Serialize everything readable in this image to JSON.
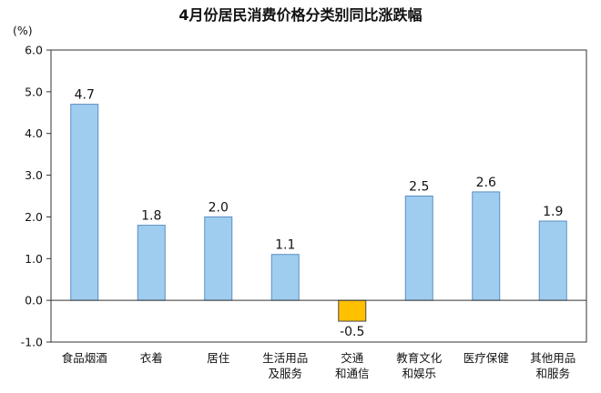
{
  "chart_data": {
    "type": "bar",
    "title": "4月份居民消费价格分类别同比涨跌幅",
    "ylabel": "(%)",
    "ylim": [
      -1.0,
      6.0
    ],
    "yticks": [
      "6.0",
      "5.0",
      "4.0",
      "3.0",
      "2.0",
      "1.0",
      "0.0",
      "-1.0"
    ],
    "ytick_values": [
      6,
      5,
      4,
      3,
      2,
      1,
      0,
      -1
    ],
    "categories": [
      [
        "食品烟酒"
      ],
      [
        "衣着"
      ],
      [
        "居住"
      ],
      [
        "生活用品",
        "及服务"
      ],
      [
        "交通",
        "和通信"
      ],
      [
        "教育文化",
        "和娱乐"
      ],
      [
        "医疗保健"
      ],
      [
        "其他用品",
        "和服务"
      ]
    ],
    "values": [
      4.7,
      1.8,
      2.0,
      1.1,
      -0.5,
      2.5,
      2.6,
      1.9
    ],
    "value_labels": [
      "4.7",
      "1.8",
      "2.0",
      "1.1",
      "-0.5",
      "2.5",
      "2.6",
      "1.9"
    ],
    "colors": {
      "positive": "#9fcdf0",
      "negative": "#ffc000",
      "positive_stroke": "#5a8fc2",
      "negative_stroke": "#4a4a4a",
      "axis": "#333333"
    },
    "grid": false,
    "legend": "none"
  }
}
